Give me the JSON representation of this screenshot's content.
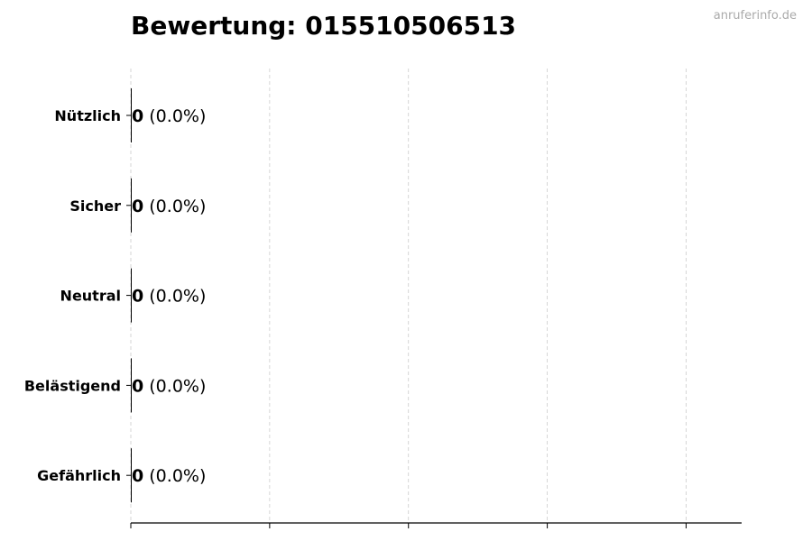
{
  "title": "Bewertung: 015510506513",
  "watermark": "anruferinfo.de",
  "chart_data": {
    "type": "bar",
    "orientation": "horizontal",
    "title": "Bewertung: 015510506513",
    "xlabel": "",
    "ylabel": "",
    "categories": [
      "Nützlich",
      "Sicher",
      "Neutral",
      "Belästigend",
      "Gefährlich"
    ],
    "values": [
      0,
      0,
      0,
      0,
      0
    ],
    "data_labels": [
      {
        "count": "0",
        "percent": "(0.0%)"
      },
      {
        "count": "0",
        "percent": "(0.0%)"
      },
      {
        "count": "0",
        "percent": "(0.0%)"
      },
      {
        "count": "0",
        "percent": "(0.0%)"
      },
      {
        "count": "0",
        "percent": "(0.0%)"
      }
    ],
    "xlim": [
      0,
      4.4
    ],
    "xticks": [
      0,
      1,
      2,
      3,
      4
    ],
    "xtick_labels_shown": false,
    "grid": "x dashed",
    "bar_color": "#000000",
    "grid_color": "#cccccc"
  }
}
